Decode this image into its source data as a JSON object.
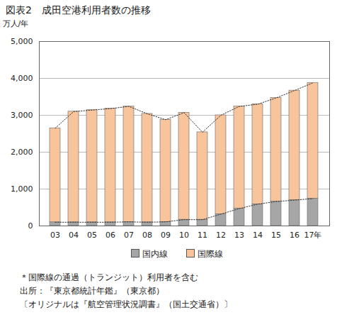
{
  "chart_data": {
    "type": "bar",
    "title": "図表2　成田空港利用者数の推移",
    "y_label": "万人/年",
    "categories": [
      "03",
      "04",
      "05",
      "06",
      "07",
      "08",
      "09",
      "10",
      "11",
      "12",
      "13",
      "14",
      "15",
      "16",
      "17年"
    ],
    "series": [
      {
        "name": "国内線",
        "color": "#a6a6a6",
        "values": [
          100,
          100,
          100,
          100,
          110,
          100,
          110,
          170,
          170,
          320,
          470,
          590,
          660,
          700,
          740
        ]
      },
      {
        "name": "国際線",
        "color": "#f8c49c",
        "values": [
          2550,
          3000,
          3040,
          3080,
          3130,
          2940,
          2770,
          2900,
          2370,
          2680,
          2770,
          2710,
          2810,
          2970,
          3140
        ]
      }
    ],
    "ylim": [
      0,
      5000
    ],
    "yticks": [
      0,
      {
        "value": 1000,
        "label": "1,000"
      },
      {
        "value": 2000,
        "label": "2,000"
      },
      {
        "value": 3000,
        "label": "3,000"
      },
      {
        "value": 4000,
        "label": "4,000"
      },
      {
        "value": 5000,
        "label": "5,000"
      }
    ],
    "grid": true,
    "stacked": true,
    "legend": "bottom",
    "annotations": [
      "＊国際線の通過（トランジット）利用者を含む",
      "出所：『東京都統計年鑑』（東京都）",
      "〔オリジナルは『航空管理状況調書』（国土交通省）〕"
    ]
  }
}
